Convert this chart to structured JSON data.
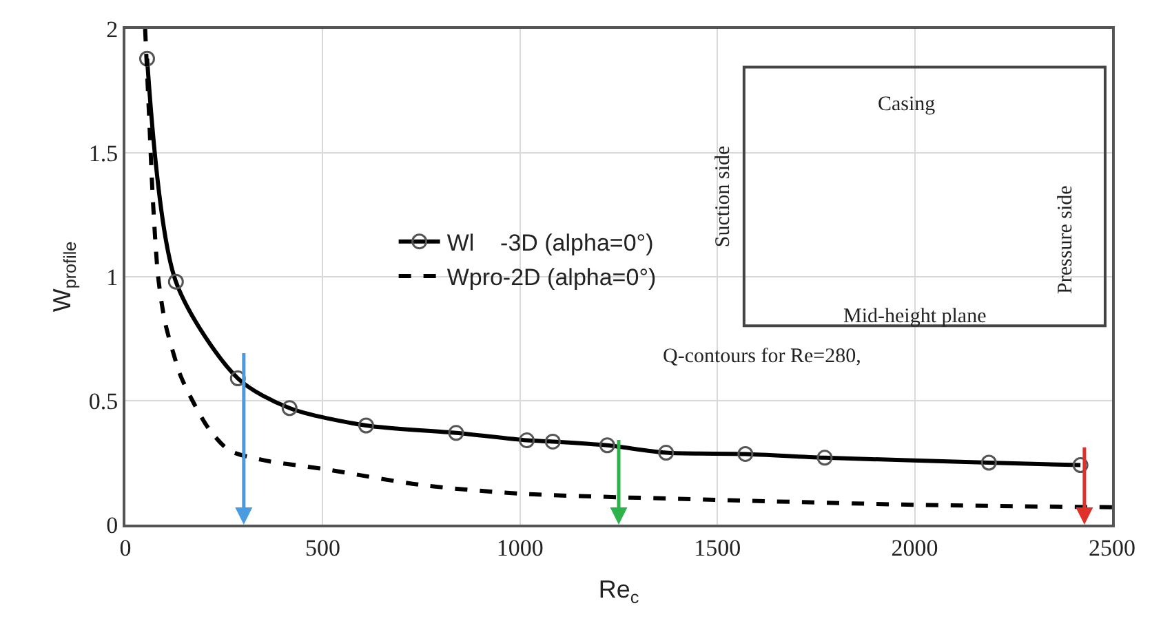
{
  "chart_data": {
    "type": "line",
    "xlabel": "Re$_{c}$",
    "ylabel": "W$_{profile}$",
    "xlim": [
      0,
      2500
    ],
    "xticks": [
      0,
      500,
      1000,
      1500,
      2000,
      2500
    ],
    "ylim": [
      0,
      2
    ],
    "yticks": [
      0,
      0.5,
      1,
      1.5,
      2
    ],
    "grid": true,
    "legend": "center",
    "series": [
      {
        "name": "Wl    -3D (alpha=0°)",
        "color": "#000000",
        "marker": "circle",
        "line_style": "solid",
        "x": [
          55,
          128,
          285,
          416,
          610,
          838,
          1017,
          1083,
          1221,
          1370,
          1571,
          1772,
          2188,
          2420
        ],
        "values": [
          1.88,
          0.98,
          0.59,
          0.47,
          0.4,
          0.37,
          0.34,
          0.335,
          0.32,
          0.29,
          0.285,
          0.27,
          0.25,
          0.24
        ]
      },
      {
        "name": "Wpro-2D (alpha=0°)",
        "color": "#000000",
        "marker": "none",
        "line_style": "dashed",
        "x": [
          50,
          60,
          70,
          83,
          100,
          120,
          140,
          170,
          210,
          263,
          350,
          500,
          750,
          1000,
          1500,
          2000,
          2500
        ],
        "values": [
          2.0,
          1.65,
          1.3,
          1.0,
          0.82,
          0.7,
          0.6,
          0.5,
          0.39,
          0.3,
          0.26,
          0.225,
          0.16,
          0.125,
          0.1,
          0.08,
          0.07
        ]
      }
    ],
    "annotations": [
      "Casing",
      "Suction side",
      "Pressure side",
      "Mid-height plane",
      "Q-contours for Re=280,"
    ]
  }
}
